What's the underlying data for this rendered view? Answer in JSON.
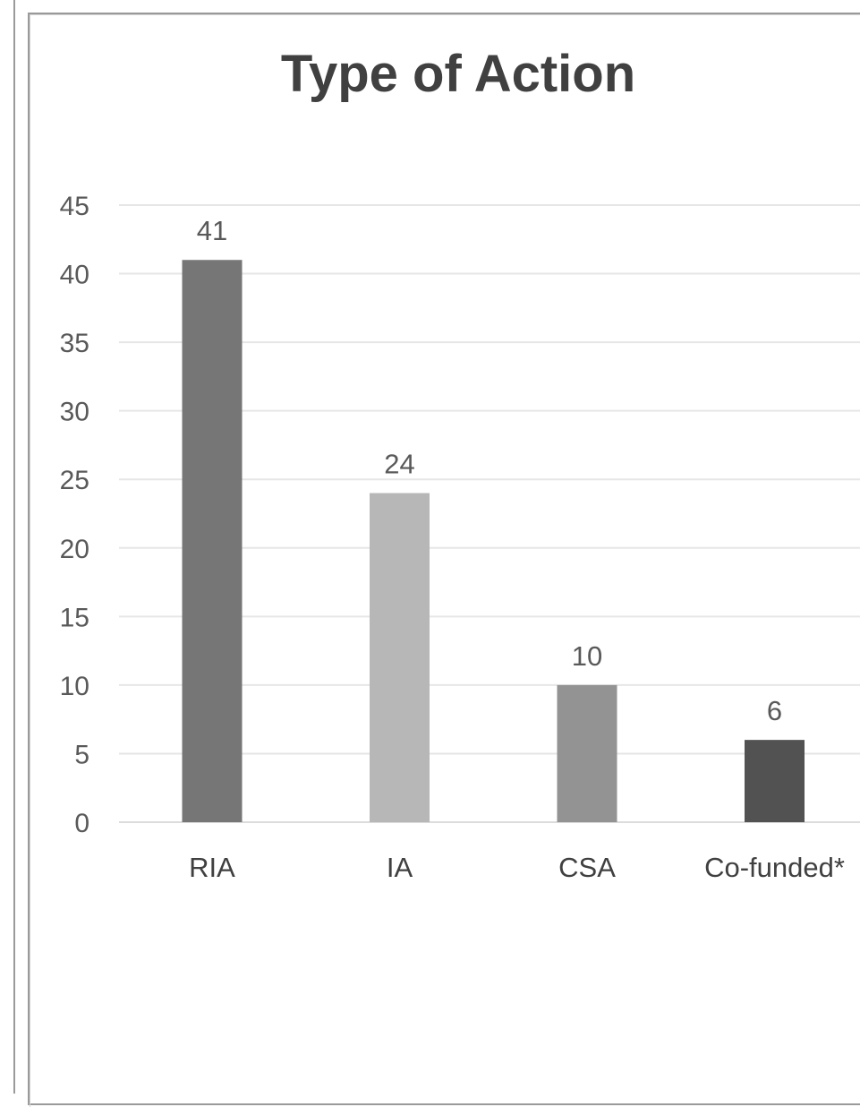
{
  "chart_data": {
    "type": "bar",
    "title": "Type of Action",
    "xlabel": "",
    "ylabel": "",
    "categories": [
      "RIA",
      "IA",
      "CSA",
      "Co-funded*"
    ],
    "values": [
      41,
      24,
      10,
      6
    ],
    "data_labels": [
      "41",
      "24",
      "10",
      "6"
    ],
    "bar_colors": [
      "#767676",
      "#b7b7b7",
      "#939393",
      "#525252"
    ],
    "ylim": [
      0,
      45
    ],
    "yticks": [
      0,
      5,
      10,
      15,
      20,
      25,
      30,
      35,
      40,
      45
    ],
    "ytick_labels": [
      "0",
      "5",
      "10",
      "15",
      "20",
      "25",
      "30",
      "35",
      "40",
      "45"
    ],
    "grid": true,
    "legend": "none"
  }
}
